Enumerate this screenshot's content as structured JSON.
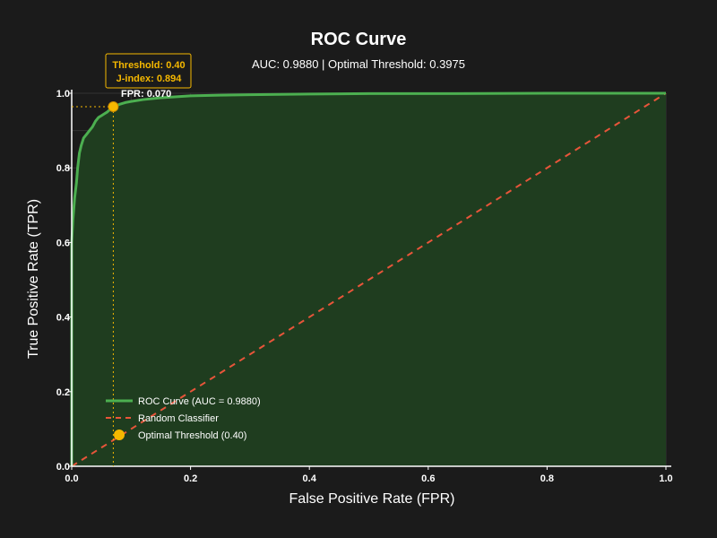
{
  "chart_data": {
    "type": "line",
    "title": "ROC Curve",
    "subtitle": "AUC: 0.9880 | Optimal Threshold: 0.3975",
    "xlabel": "False Positive Rate (FPR)",
    "ylabel": "True Positive Rate (TPR)",
    "xlim": [
      0,
      1
    ],
    "ylim": [
      0,
      1
    ],
    "xticks": [
      "0.0",
      "0.2",
      "0.4",
      "0.6",
      "0.8",
      "1.0"
    ],
    "yticks": [
      "0.0",
      "0.2",
      "0.4",
      "0.6",
      "0.8",
      "1.0"
    ],
    "grid": true,
    "legend_position": "lower-left",
    "series": [
      {
        "name": "ROC Curve (AUC = 0.9880)",
        "color": "#4caf50",
        "style": "solid",
        "fill": true,
        "x": [
          0,
          0,
          0.002,
          0.005,
          0.008,
          0.01,
          0.013,
          0.016,
          0.02,
          0.025,
          0.03,
          0.035,
          0.04,
          0.045,
          0.05,
          0.055,
          0.06,
          0.065,
          0.07,
          0.08,
          0.09,
          0.1,
          0.12,
          0.15,
          0.2,
          0.25,
          0.3,
          0.4,
          0.5,
          0.6,
          0.8,
          1.0
        ],
        "y": [
          0,
          0.6,
          0.66,
          0.72,
          0.76,
          0.8,
          0.84,
          0.86,
          0.88,
          0.89,
          0.9,
          0.91,
          0.925,
          0.935,
          0.94,
          0.945,
          0.95,
          0.957,
          0.964,
          0.97,
          0.975,
          0.978,
          0.983,
          0.988,
          0.993,
          0.995,
          0.996,
          0.998,
          0.999,
          0.999,
          1.0,
          1.0
        ]
      },
      {
        "name": "Random Classifier",
        "color": "#e8553a",
        "style": "dashed",
        "x": [
          0,
          1
        ],
        "y": [
          0,
          1
        ]
      }
    ],
    "optimal_point": {
      "name": "Optimal Threshold (0.40)",
      "color": "#f5b800",
      "x": 0.07,
      "y": 0.964,
      "annotation": {
        "threshold_text": "Threshold: 0.40",
        "jindex_text": "J-index: 0.894",
        "fpr_text": "FPR: 0.070"
      }
    },
    "colors": {
      "background": "#1b1b1b",
      "grid": "#333333",
      "fill": "#1f3d1f",
      "axis": "#ffffff"
    }
  }
}
